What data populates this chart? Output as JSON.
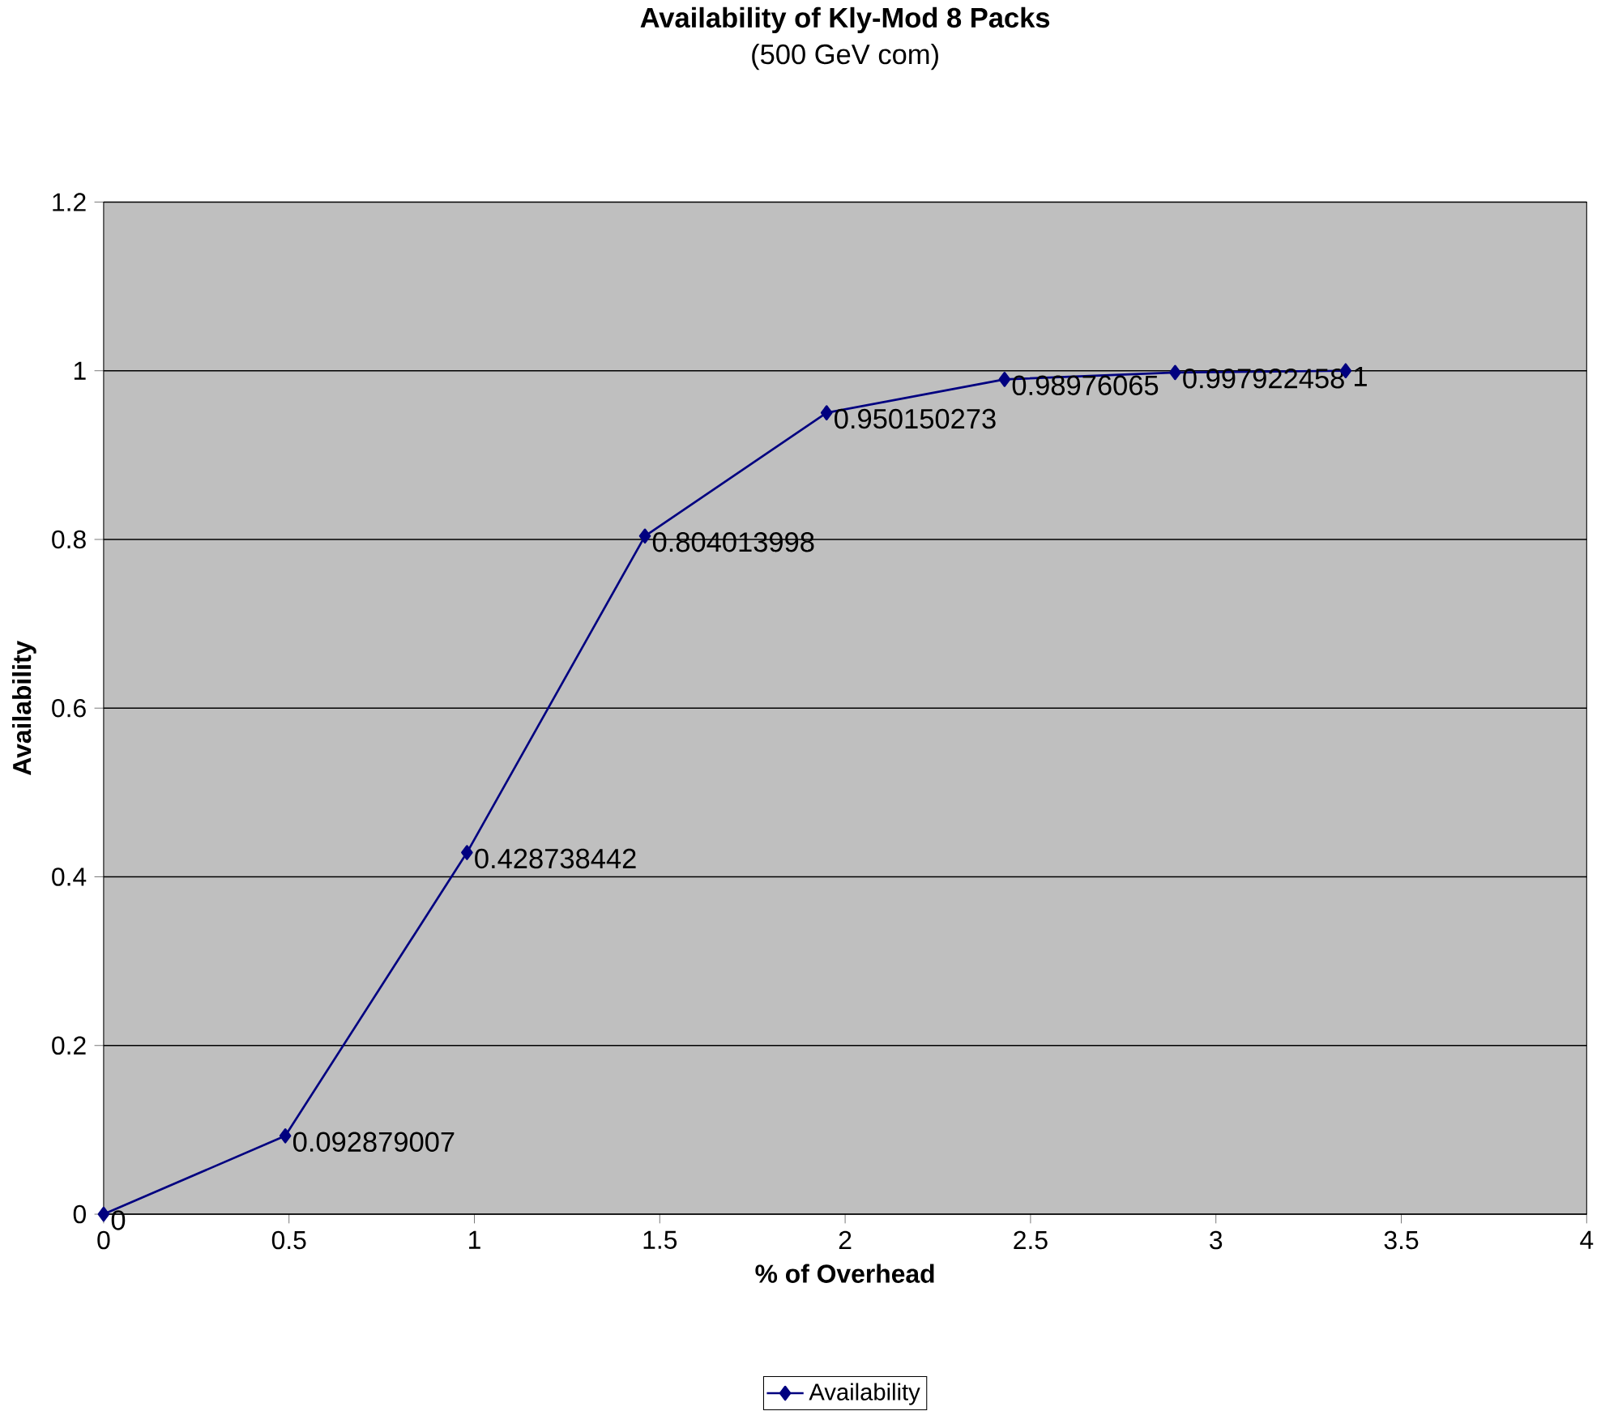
{
  "chart_data": {
    "type": "line",
    "title": "Availability of Kly-Mod 8 Packs",
    "subtitle": "(500 GeV com)",
    "xlabel": "% of Overhead",
    "ylabel": "Availability",
    "x": [
      0,
      0.49,
      0.98,
      1.46,
      1.95,
      2.43,
      2.89,
      3.35
    ],
    "series": [
      {
        "name": "Availability",
        "color": "#000080",
        "values": [
          0,
          0.092879007,
          0.428738442,
          0.804013998,
          0.950150273,
          0.98976065,
          0.997922458,
          1
        ]
      }
    ],
    "xlim": [
      0,
      4
    ],
    "ylim": [
      0,
      1.2
    ],
    "xticks": [
      0,
      0.5,
      1,
      1.5,
      2,
      2.5,
      3,
      3.5,
      4
    ],
    "yticks": [
      0,
      0.2,
      0.4,
      0.6,
      0.8,
      1,
      1.2
    ],
    "grid": "y",
    "legend": "bottom",
    "marker": "diamond",
    "line_style": "solid",
    "data_labels": true
  }
}
